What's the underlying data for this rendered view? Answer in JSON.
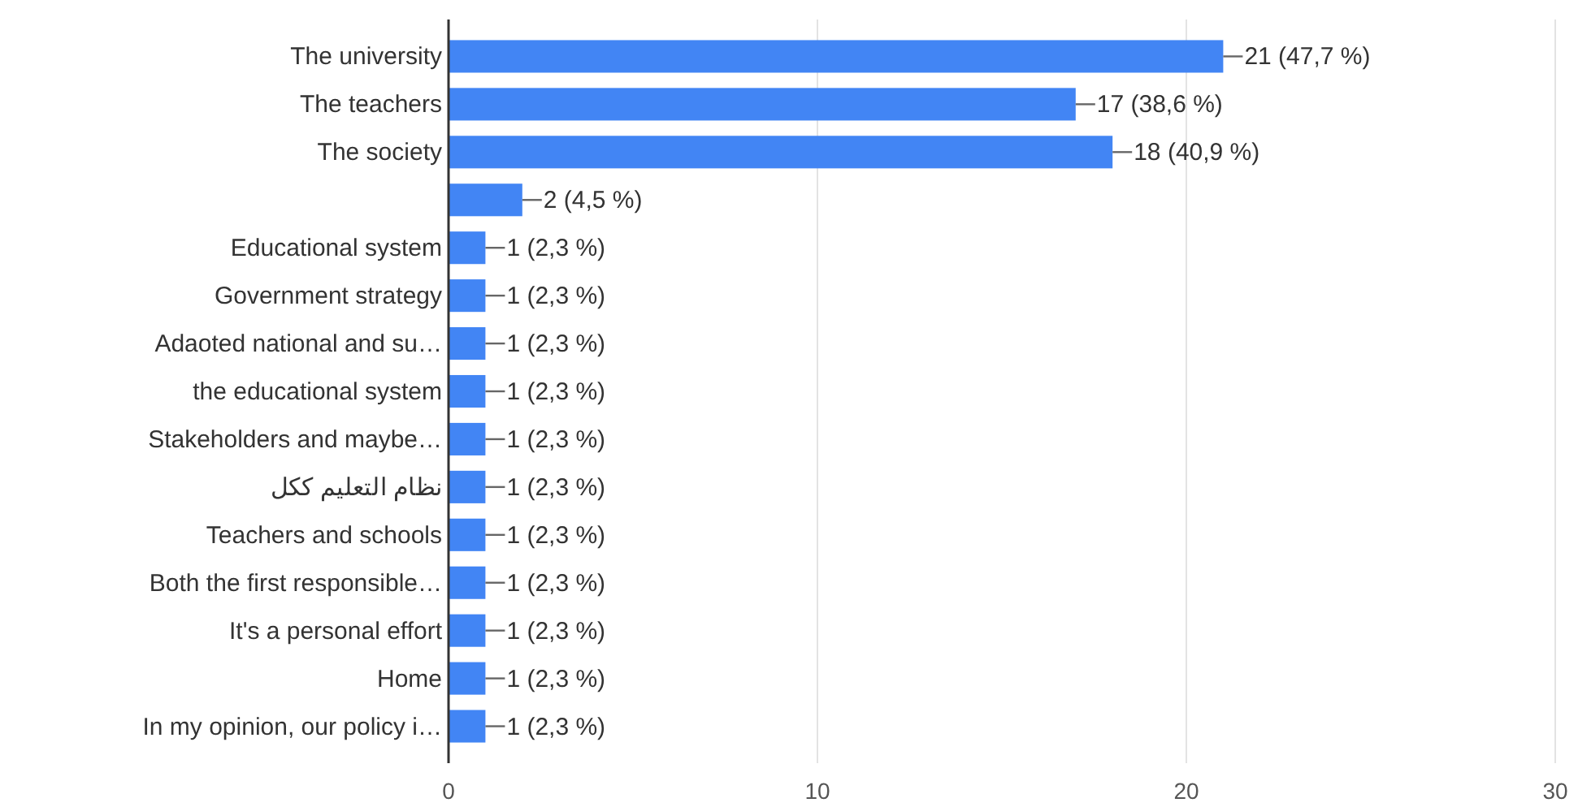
{
  "chart_data": {
    "type": "bar",
    "orientation": "horizontal",
    "categories": [
      "The university",
      "The teachers",
      "The society",
      null,
      "Educational system",
      "Government strategy",
      "Adaoted national and su…",
      "the educational system",
      "Stakeholders and maybe…",
      "نظام التعليم ككل",
      "Teachers and schools",
      "Both the first responsible…",
      "It's a personal effort",
      "Home",
      "In my opinion, our policy i…"
    ],
    "values": [
      21,
      17,
      18,
      2,
      1,
      1,
      1,
      1,
      1,
      1,
      1,
      1,
      1,
      1,
      1
    ],
    "value_labels": [
      "21 (47,7 %)",
      "17 (38,6 %)",
      "18 (40,9 %)",
      "2 (4,5 %)",
      "1 (2,3 %)",
      "1 (2,3 %)",
      "1 (2,3 %)",
      "1 (2,3 %)",
      "1 (2,3 %)",
      "1 (2,3 %)",
      "1 (2,3 %)",
      "1 (2,3 %)",
      "1 (2,3 %)",
      "1 (2,3 %)",
      "1 (2,3 %)"
    ],
    "color": "#4285f4",
    "xlim": [
      0,
      30
    ],
    "xticks": [
      0,
      10,
      20,
      30
    ],
    "grid": "x"
  }
}
